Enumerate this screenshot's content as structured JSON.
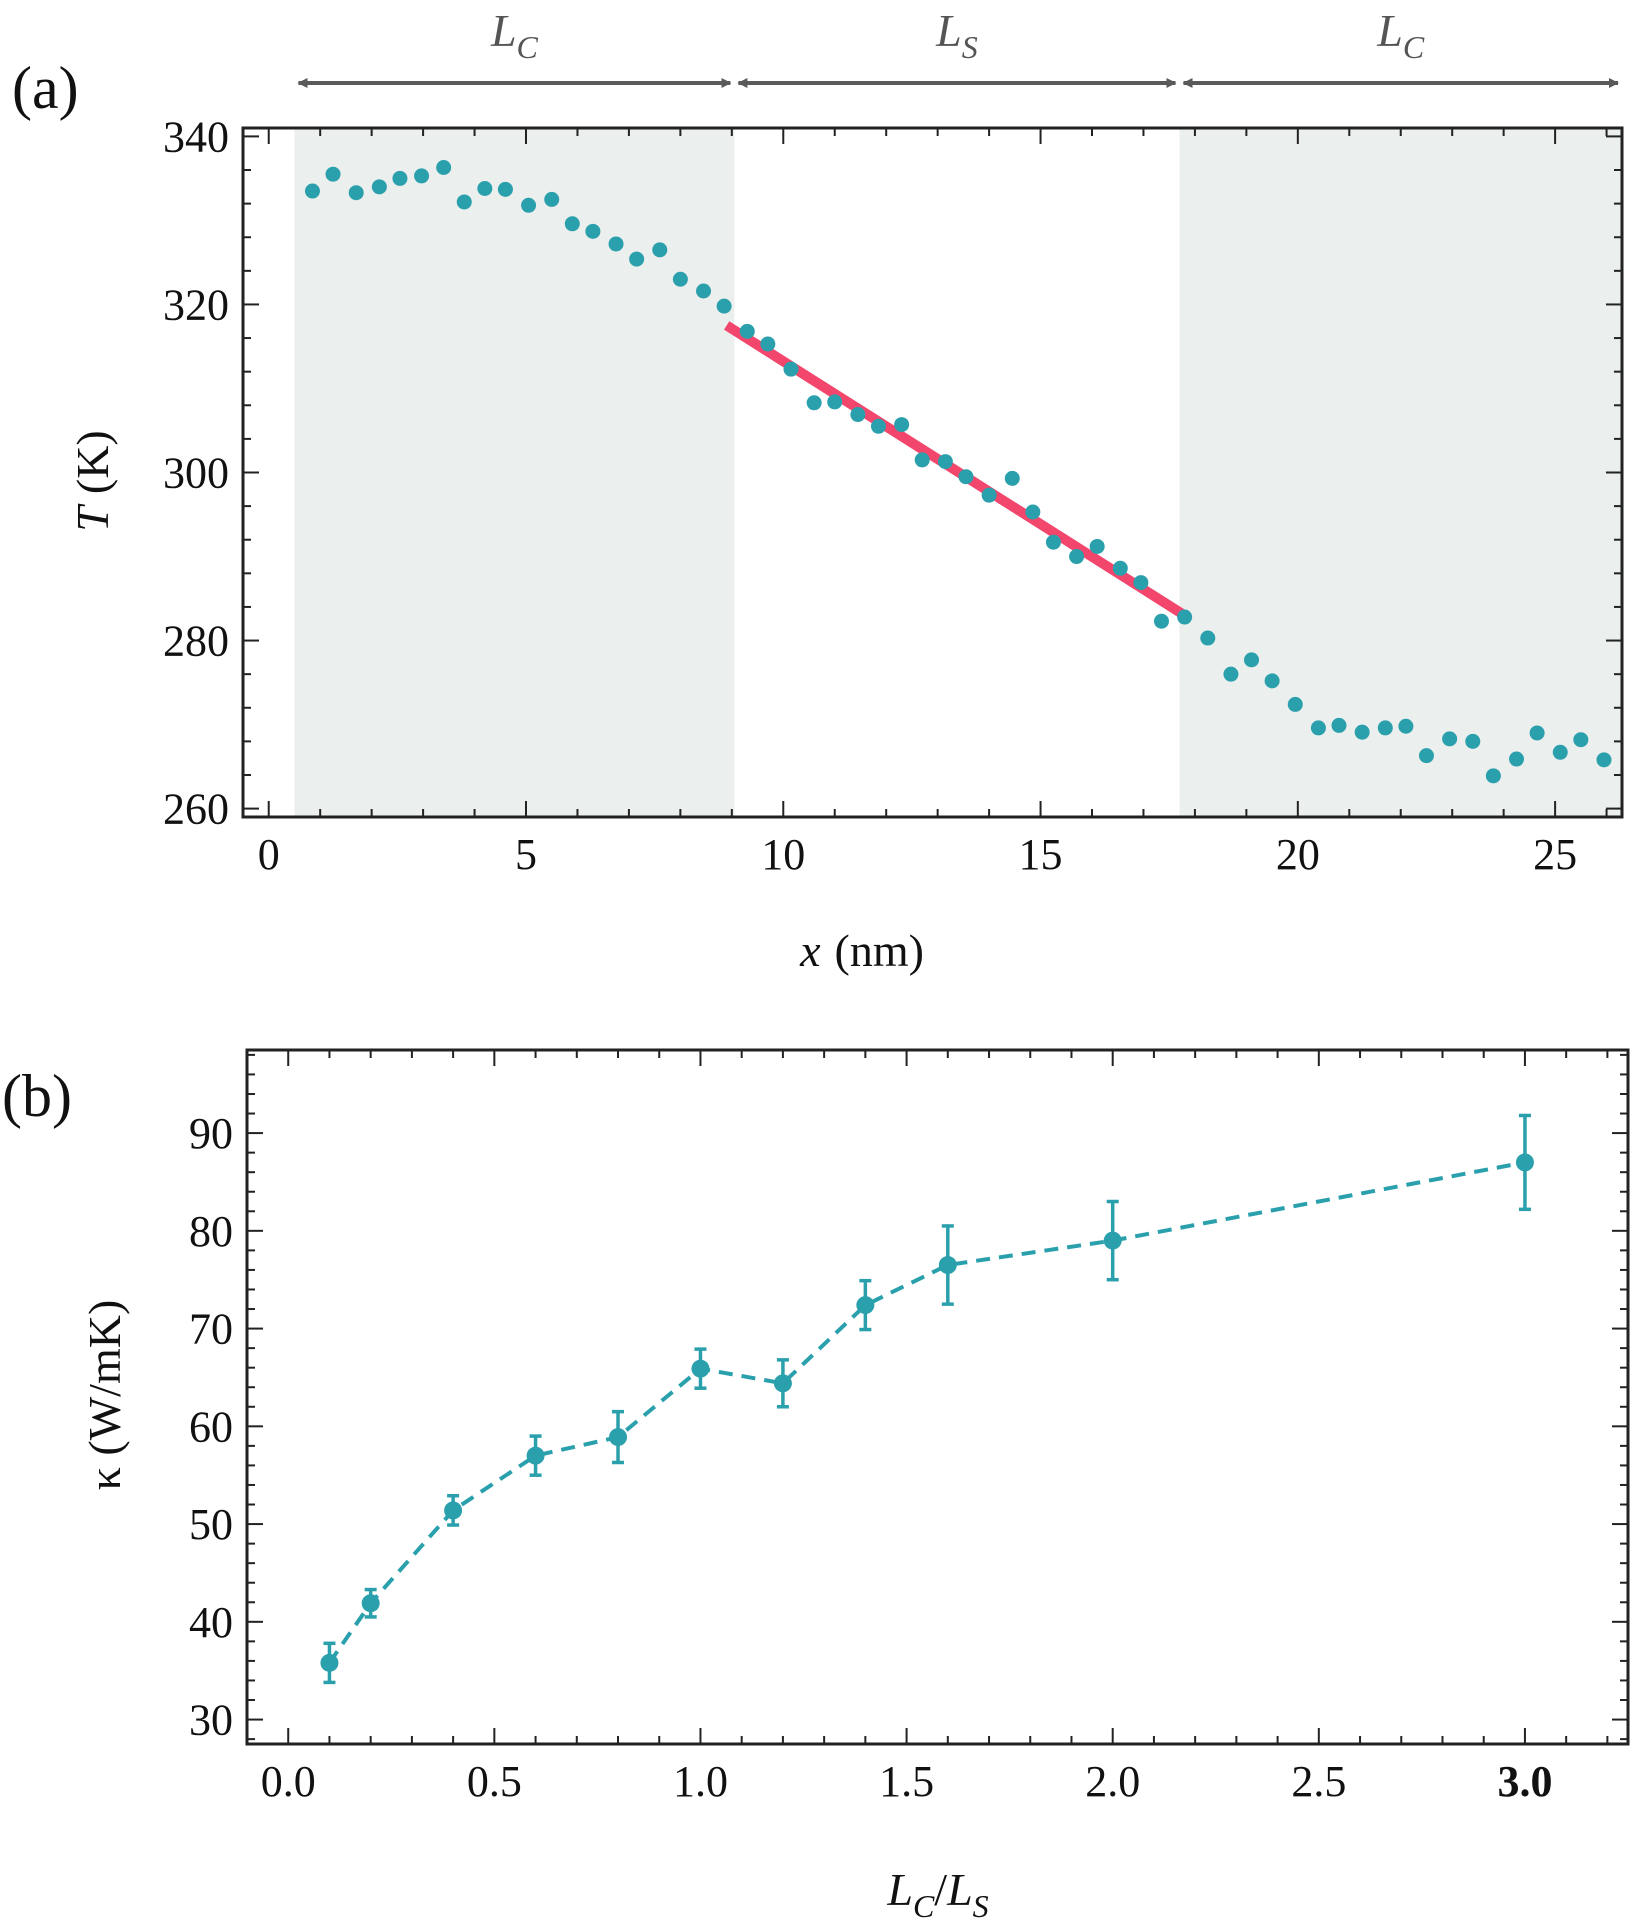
{
  "colors": {
    "point": "#2ba0ad",
    "fit_line": "#f2466c",
    "shade": "#ebefed",
    "arrow": "#5a5a5a",
    "axis": "#222222"
  },
  "chart_data": [
    {
      "type": "scatter",
      "panel_label": "(a)",
      "xlabel_var": "x",
      "xlabel_unit": "(nm)",
      "ylabel_var": "T",
      "ylabel_unit": "(K)",
      "xlim": [
        -0.5,
        26.3
      ],
      "ylim": [
        259,
        341
      ],
      "xticks": [
        0,
        5,
        10,
        15,
        20,
        25
      ],
      "yticks": [
        260,
        280,
        300,
        320,
        340
      ],
      "regions": [
        {
          "label": "L",
          "sub": "C",
          "x0": 0.5,
          "x1": 9.05,
          "shaded": true
        },
        {
          "label": "L",
          "sub": "S",
          "x0": 9.05,
          "x1": 17.7,
          "shaded": false
        },
        {
          "label": "L",
          "sub": "C",
          "x0": 17.7,
          "x1": 26.3,
          "shaded": true
        }
      ],
      "fit_line": {
        "x": [
          8.9,
          17.8
        ],
        "y": [
          317.5,
          283
        ]
      },
      "series": [
        {
          "name": "temperature",
          "x": [
            0.85,
            1.25,
            1.7,
            2.15,
            2.55,
            2.97,
            3.4,
            3.8,
            4.2,
            4.6,
            5.05,
            5.5,
            5.9,
            6.3,
            6.75,
            7.15,
            7.6,
            8.0,
            8.45,
            8.85,
            9.3,
            9.7,
            10.15,
            10.6,
            11.0,
            11.45,
            11.85,
            12.3,
            12.7,
            13.15,
            13.55,
            14.0,
            14.45,
            14.85,
            15.25,
            15.7,
            16.1,
            16.55,
            16.95,
            17.35,
            17.8,
            18.25,
            18.7,
            19.1,
            19.5,
            19.95,
            20.4,
            20.8,
            21.25,
            21.7,
            22.1,
            22.5,
            22.95,
            23.4,
            23.8,
            24.25,
            24.65,
            25.1,
            25.5,
            25.95
          ],
          "y": [
            333.5,
            335.5,
            333.3,
            334.0,
            335.0,
            335.3,
            336.3,
            332.2,
            333.8,
            333.7,
            331.8,
            332.5,
            329.6,
            328.7,
            327.2,
            325.4,
            326.5,
            323.0,
            321.6,
            319.8,
            316.8,
            315.3,
            312.3,
            308.3,
            308.4,
            306.9,
            305.5,
            305.7,
            301.5,
            301.3,
            299.5,
            297.3,
            299.3,
            295.3,
            291.7,
            290.0,
            291.2,
            288.6,
            286.9,
            282.3,
            282.8,
            280.3,
            276.0,
            277.7,
            275.2,
            272.4,
            269.6,
            269.9,
            269.1,
            269.6,
            269.8,
            266.3,
            268.3,
            268.0,
            263.9,
            265.9,
            269.0,
            266.7,
            268.2,
            265.8
          ]
        }
      ]
    },
    {
      "type": "line",
      "panel_label": "(b)",
      "xlabel": "L_C / L_S",
      "ylabel": "κ (W/mK)",
      "xlim": [
        -0.1,
        3.25
      ],
      "ylim": [
        27.5,
        98.5
      ],
      "xticks": [
        0.0,
        0.5,
        1.0,
        1.5,
        2.0,
        2.5,
        3.0
      ],
      "xtick_labels": [
        "0.0",
        "0.5",
        "1.0",
        "1.5",
        "2.0",
        "2.5",
        "3.0"
      ],
      "yticks": [
        30,
        40,
        50,
        60,
        70,
        80,
        90
      ],
      "series": [
        {
          "name": "kappa",
          "x": [
            0.1,
            0.2,
            0.4,
            0.6,
            0.8,
            1.0,
            1.2,
            1.4,
            1.6,
            2.0,
            3.0
          ],
          "y": [
            35.8,
            41.9,
            51.4,
            57.0,
            58.9,
            65.9,
            64.4,
            72.4,
            76.5,
            79.0,
            87.0
          ],
          "err": [
            2.0,
            1.4,
            1.5,
            2.0,
            2.6,
            2.0,
            2.4,
            2.5,
            4.0,
            4.0,
            4.8
          ]
        }
      ]
    }
  ]
}
